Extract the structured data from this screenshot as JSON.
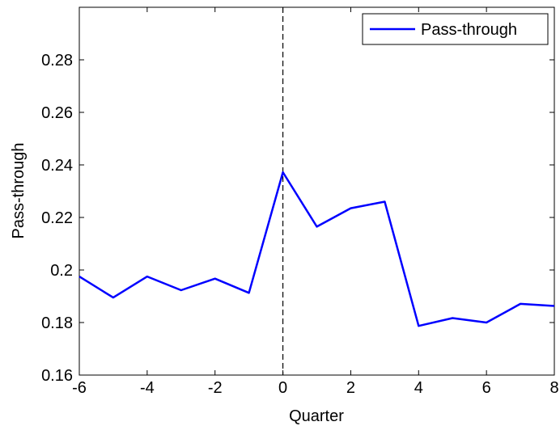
{
  "chart_data": {
    "type": "line",
    "title": "",
    "xlabel": "Quarter",
    "ylabel": "Pass-through",
    "xlim": [
      -6,
      8
    ],
    "ylim": [
      0.16,
      0.3
    ],
    "xticks": [
      -6,
      -4,
      -2,
      0,
      2,
      4,
      6,
      8
    ],
    "xtick_labels": [
      "-6",
      "-4",
      "-2",
      "0",
      "2",
      "4",
      "6",
      "8"
    ],
    "yticks": [
      0.16,
      0.18,
      0.2,
      0.22,
      0.24,
      0.26,
      0.28
    ],
    "ytick_labels": [
      "0.16",
      "0.18",
      "0.2",
      "0.22",
      "0.24",
      "0.26",
      "0.28"
    ],
    "grid": false,
    "legend_position": "top-right",
    "vertical_reference_line": {
      "x": 0,
      "style": "dashed",
      "color": "#000000"
    },
    "series": [
      {
        "name": "Pass-through",
        "color": "#0000ff",
        "x": [
          -6,
          -5,
          -4,
          -3,
          -2,
          -1,
          0,
          1,
          2,
          3,
          4,
          5,
          6,
          7,
          8
        ],
        "values": [
          0.1975,
          0.1895,
          0.1975,
          0.1923,
          0.1967,
          0.1913,
          0.2372,
          0.2165,
          0.2235,
          0.226,
          0.1787,
          0.1817,
          0.18,
          0.1871,
          0.1863
        ]
      }
    ]
  }
}
